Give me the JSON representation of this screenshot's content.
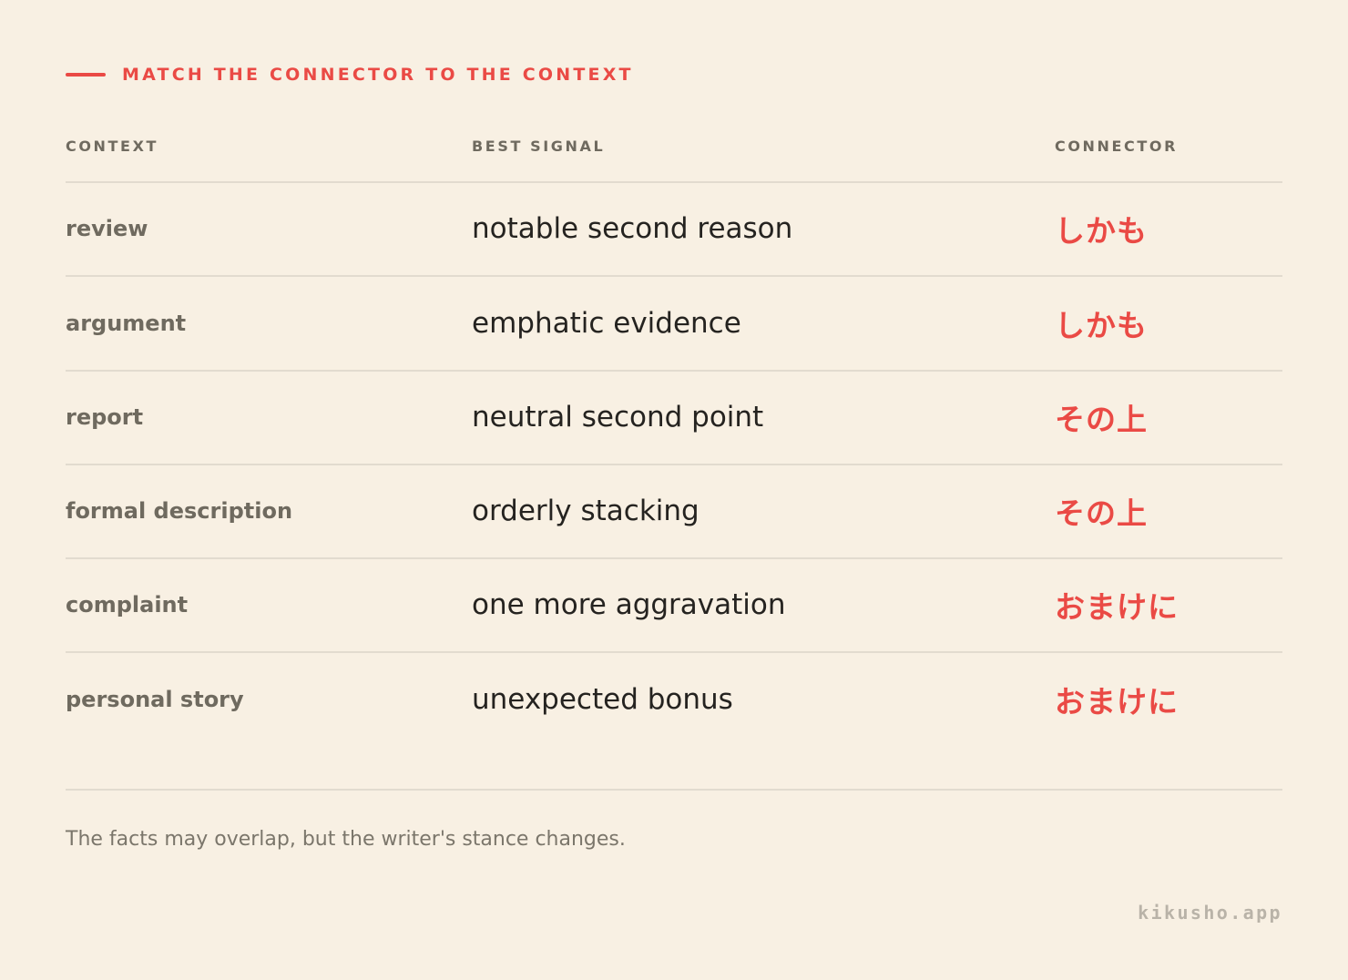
{
  "header": {
    "title": "MATCH THE CONNECTOR TO THE CONTEXT",
    "accent_color": "#ea4a45"
  },
  "table": {
    "columns": [
      "CONTEXT",
      "BEST SIGNAL",
      "CONNECTOR"
    ],
    "rows": [
      {
        "context": "review",
        "signal": "notable second reason",
        "connector": "しかも"
      },
      {
        "context": "argument",
        "signal": "emphatic evidence",
        "connector": "しかも"
      },
      {
        "context": "report",
        "signal": "neutral second point",
        "connector": "その上"
      },
      {
        "context": "formal description",
        "signal": "orderly stacking",
        "connector": "その上"
      },
      {
        "context": "complaint",
        "signal": "one more aggravation",
        "connector": "おまけに"
      },
      {
        "context": "personal story",
        "signal": "unexpected bonus",
        "connector": "おまけに"
      }
    ]
  },
  "footnote": "The facts may overlap, but the writer's stance changes.",
  "brand": "kikusho.app",
  "colors": {
    "background": "#f8f0e3",
    "accent": "#ea4a45",
    "muted_text": "#6f6a5f",
    "body_text": "#252320",
    "rule": "#e2dbcf"
  }
}
